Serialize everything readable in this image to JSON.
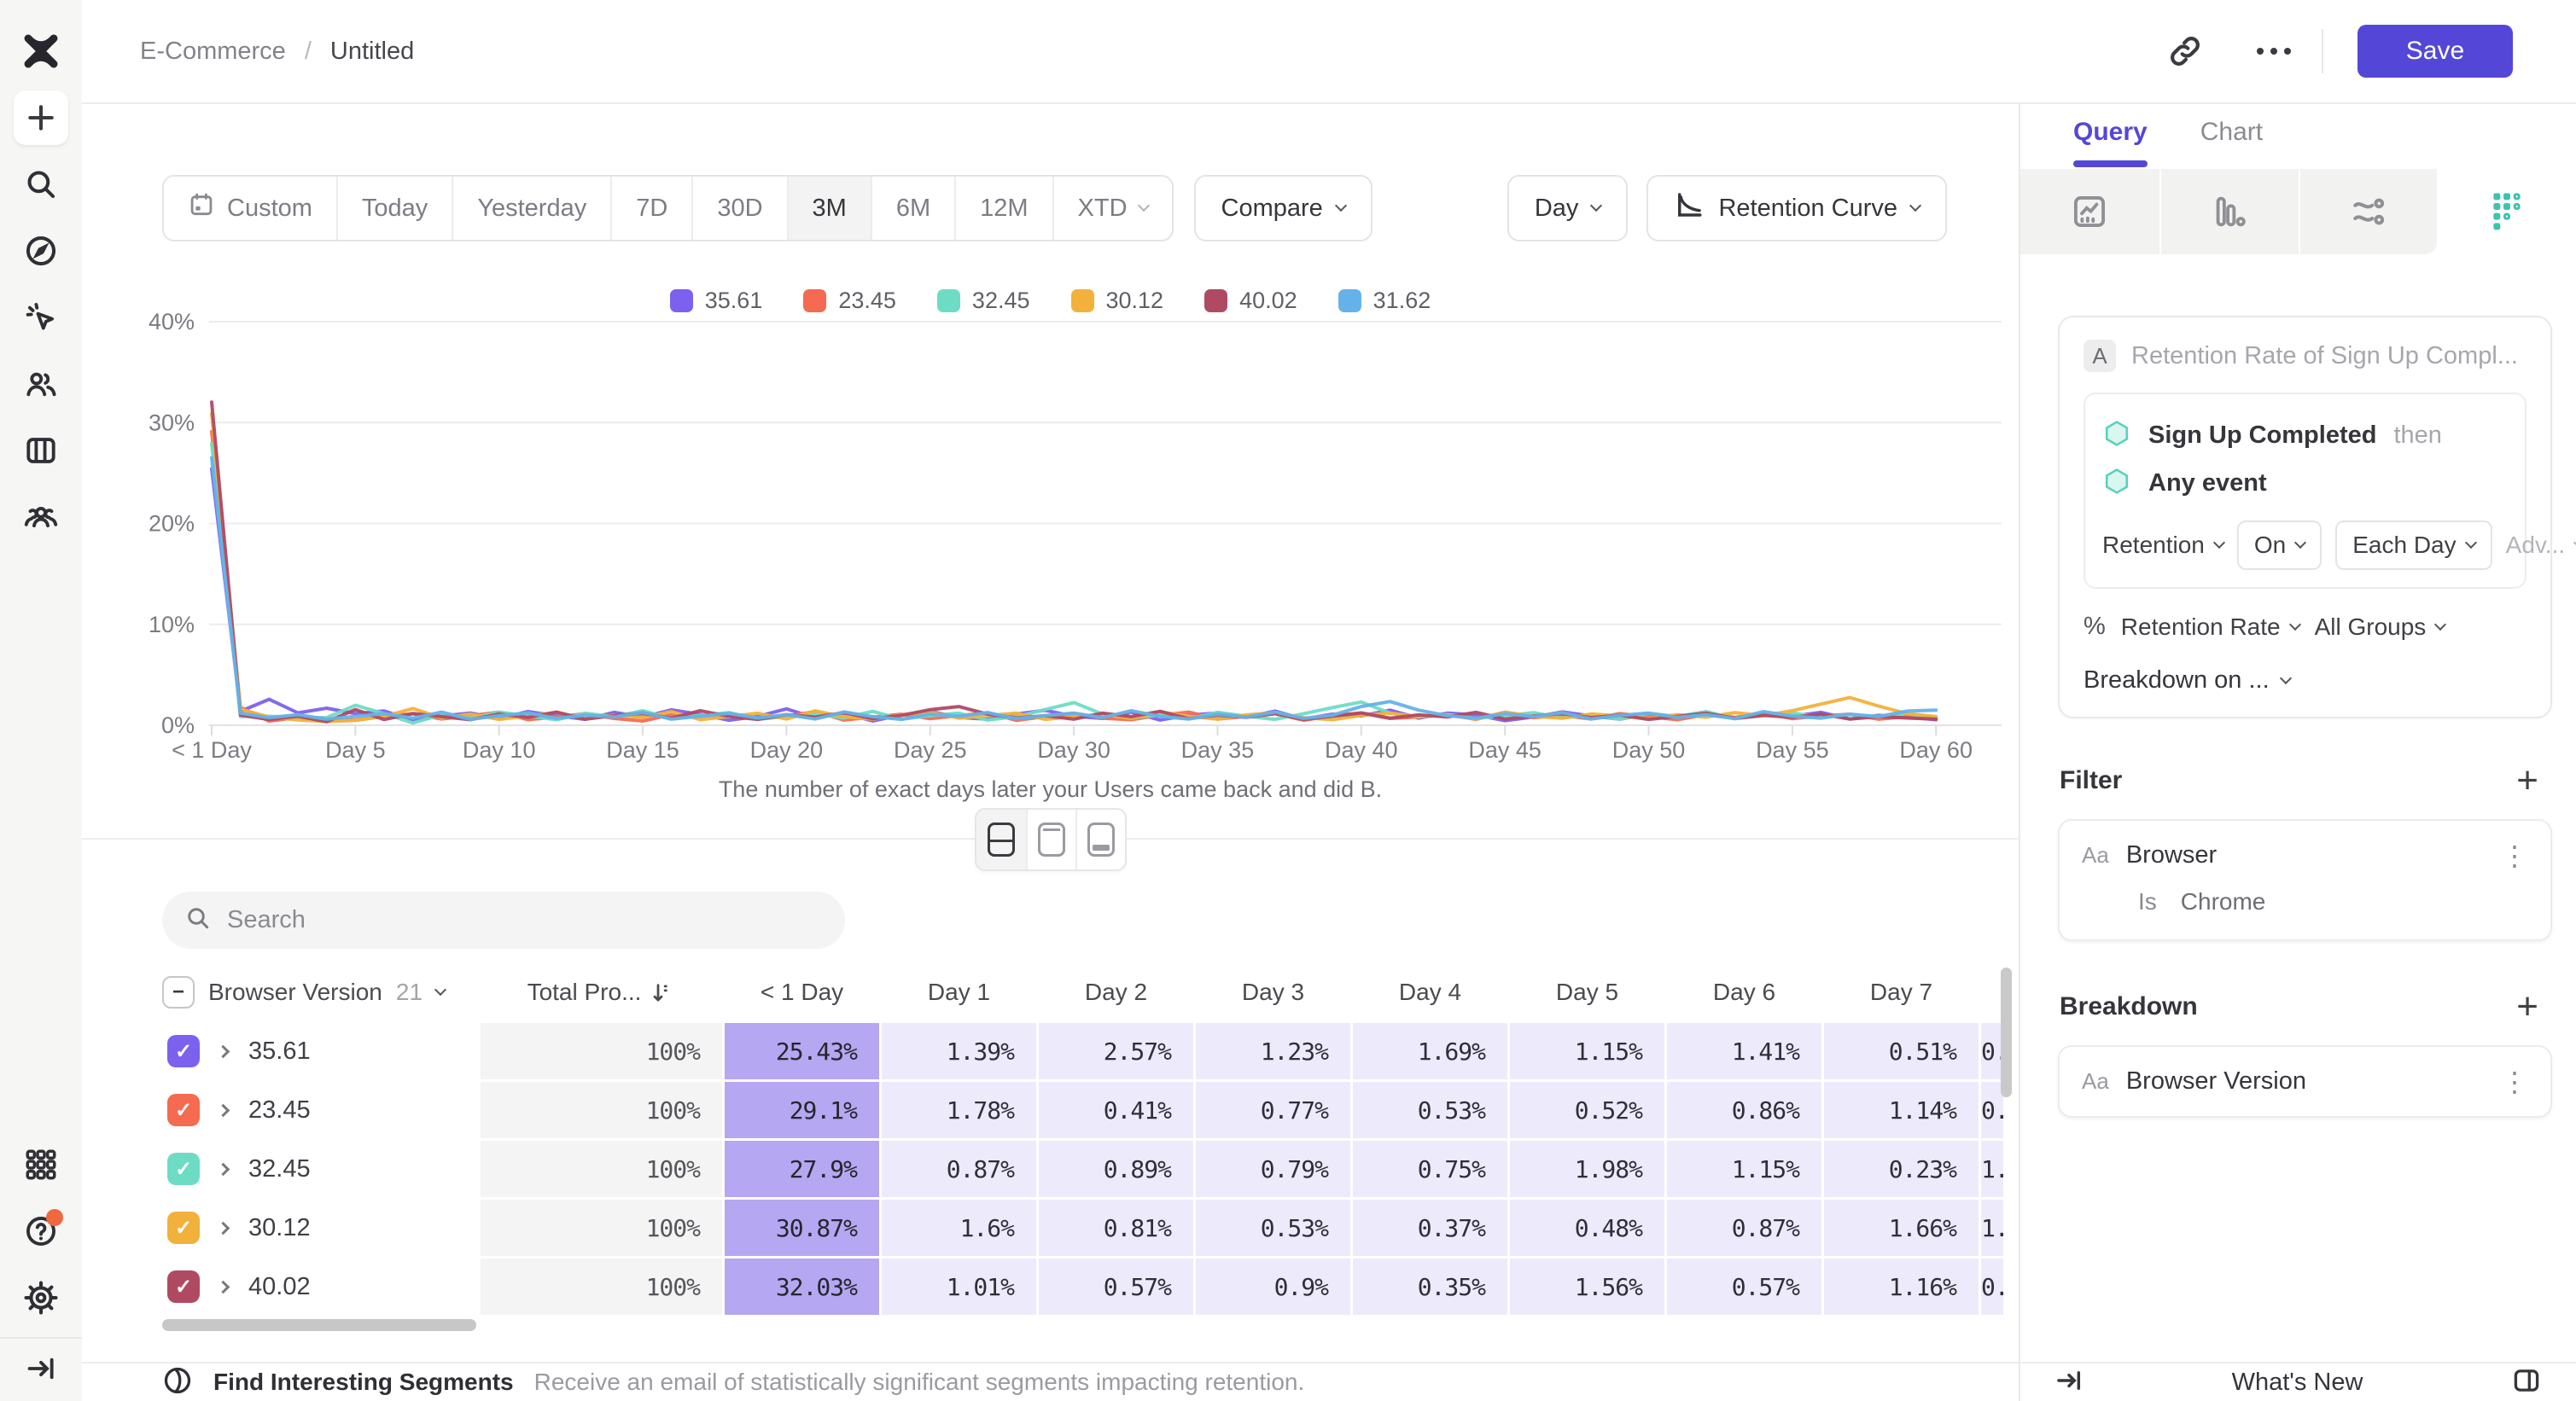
{
  "topbar": {
    "breadcrumb": {
      "project": "E-Commerce",
      "separator": "/",
      "title": "Untitled"
    },
    "save_label": "Save"
  },
  "toolbar": {
    "ranges": [
      "Custom",
      "Today",
      "Yesterday",
      "7D",
      "30D",
      "3M",
      "6M",
      "12M",
      "XTD"
    ],
    "active_range": "3M",
    "compare_label": "Compare",
    "granularity_label": "Day",
    "chart_type_label": "Retention Curve"
  },
  "chart_data": {
    "type": "line",
    "title": "",
    "xlabel": "The number of exact days later your Users came back and did B.",
    "ylabel": "",
    "x_range": [
      0,
      60
    ],
    "x_tick_positions": [
      0,
      5,
      10,
      15,
      20,
      25,
      30,
      35,
      40,
      45,
      50,
      55,
      60
    ],
    "x_tick_labels": [
      "< 1 Day",
      "Day 5",
      "Day 10",
      "Day 15",
      "Day 20",
      "Day 25",
      "Day 30",
      "Day 35",
      "Day 40",
      "Day 45",
      "Day 50",
      "Day 55",
      "Day 60"
    ],
    "y_ticks": [
      0,
      10,
      20,
      30,
      40
    ],
    "ylim": [
      0,
      42
    ],
    "grid": true,
    "legend_position": "top-center",
    "series": [
      {
        "name": "35.61",
        "color": "#7c61ee",
        "values": [
          25.43,
          1.39,
          2.57,
          1.23,
          1.69,
          1.15,
          1.41,
          0.51,
          0.92,
          1.21,
          0.68,
          1.35,
          0.95,
          0.58,
          1.28,
          0.81,
          1.52,
          1.08,
          0.49,
          0.88,
          1.62,
          0.72,
          1.18,
          0.42,
          1.02,
          1.38,
          0.78,
          0.6,
          1.12,
          1.48,
          0.9,
          0.68,
          1.3,
          0.52,
          1.0,
          1.22,
          0.82,
          1.4,
          0.62,
          1.1,
          0.92,
          1.5,
          0.7,
          1.2,
          1.02,
          0.45,
          0.82,
          1.32,
          0.92,
          0.6,
          1.1,
          0.82,
          1.22,
          0.72,
          1.02,
          0.9,
          1.28,
          0.62,
          0.98,
          0.82,
          0.55
        ]
      },
      {
        "name": "23.45",
        "color": "#f56a51",
        "values": [
          29.1,
          1.78,
          0.41,
          0.77,
          0.53,
          0.52,
          0.86,
          1.14,
          0.62,
          0.95,
          1.3,
          0.55,
          0.82,
          1.15,
          0.68,
          0.42,
          1.05,
          0.78,
          1.22,
          0.6,
          0.9,
          1.35,
          0.52,
          0.8,
          1.1,
          0.65,
          0.95,
          1.25,
          0.48,
          0.85,
          1.18,
          0.7,
          0.55,
          1.0,
          1.3,
          0.62,
          0.88,
          1.15,
          0.5,
          0.95,
          1.22,
          0.68,
          0.82,
          1.05,
          0.58,
          1.28,
          0.75,
          0.95,
          0.62,
          1.15,
          0.85,
          0.55,
          1.05,
          0.78,
          1.2,
          0.65,
          0.92,
          1.1,
          0.6,
          0.85,
          0.7
        ]
      },
      {
        "name": "32.45",
        "color": "#6edcc4",
        "values": [
          27.9,
          0.87,
          0.89,
          0.79,
          0.75,
          1.98,
          1.15,
          0.23,
          1.05,
          0.7,
          1.3,
          0.92,
          0.55,
          1.18,
          0.85,
          1.45,
          0.65,
          0.98,
          1.25,
          0.58,
          0.88,
          1.15,
          0.72,
          1.38,
          0.6,
          0.95,
          1.2,
          0.52,
          0.85,
          1.55,
          2.25,
          1.1,
          0.75,
          1.0,
          0.62,
          1.28,
          0.9,
          0.58,
          1.15,
          1.75,
          2.3,
          1.2,
          0.82,
          1.05,
          0.68,
          0.95,
          1.25,
          0.72,
          1.0,
          0.6,
          1.18,
          0.88,
          1.35,
          0.65,
          0.95,
          1.22,
          0.78,
          1.05,
          0.88,
          1.15,
          0.7
        ]
      },
      {
        "name": "30.12",
        "color": "#f2b13b",
        "values": [
          30.87,
          1.6,
          0.81,
          0.53,
          0.37,
          0.48,
          0.87,
          1.66,
          0.72,
          1.1,
          0.58,
          0.92,
          1.28,
          0.65,
          1.0,
          0.78,
          1.35,
          0.55,
          0.88,
          1.18,
          0.62,
          1.42,
          0.85,
          0.6,
          1.05,
          1.3,
          0.7,
          0.95,
          1.2,
          0.58,
          0.85,
          1.1,
          0.68,
          1.32,
          0.9,
          0.6,
          1.02,
          1.25,
          0.75,
          0.55,
          0.98,
          1.2,
          0.82,
          1.05,
          0.62,
          1.3,
          0.88,
          0.7,
          1.12,
          0.92,
          0.65,
          1.05,
          0.8,
          1.25,
          0.95,
          1.45,
          2.1,
          2.75,
          1.9,
          1.15,
          0.85
        ]
      },
      {
        "name": "40.02",
        "color": "#b04a63",
        "values": [
          32.03,
          1.01,
          0.57,
          0.9,
          0.35,
          1.56,
          0.57,
          1.16,
          0.85,
          0.55,
          1.12,
          0.78,
          1.3,
          0.6,
          0.95,
          1.18,
          0.7,
          1.45,
          0.88,
          0.58,
          1.05,
          0.8,
          1.25,
          0.65,
          0.98,
          1.55,
          1.85,
          1.1,
          0.72,
          0.95,
          0.6,
          1.2,
          0.85,
          1.38,
          0.65,
          1.0,
          0.78,
          1.15,
          0.58,
          0.9,
          1.22,
          0.7,
          1.02,
          0.82,
          1.28,
          0.62,
          0.92,
          1.15,
          0.75,
          1.0,
          0.58,
          0.88,
          1.2,
          0.68,
          0.98,
          0.78,
          1.1,
          0.62,
          0.85,
          0.72,
          0.6
        ]
      },
      {
        "name": "31.62",
        "color": "#64b2e9",
        "values": [
          26.5,
          1.2,
          0.75,
          1.05,
          0.6,
          0.88,
          1.15,
          0.7,
          1.3,
          0.58,
          0.95,
          1.22,
          0.68,
          1.0,
          0.82,
          1.28,
          0.6,
          0.9,
          1.18,
          0.72,
          1.05,
          0.62,
          1.32,
          0.85,
          0.58,
          1.1,
          0.9,
          1.25,
          0.65,
          0.95,
          1.2,
          0.75,
          1.45,
          0.88,
          0.62,
          1.08,
          0.8,
          1.3,
          0.68,
          1.0,
          1.85,
          2.35,
          1.5,
          0.95,
          0.7,
          1.15,
          0.85,
          1.25,
          0.62,
          0.98,
          1.2,
          0.78,
          1.05,
          0.65,
          1.35,
          0.9,
          0.7,
          1.1,
          0.85,
          1.4,
          1.5
        ]
      }
    ]
  },
  "search": {
    "placeholder": "Search"
  },
  "table": {
    "group_label": "Browser Version",
    "group_count": "21",
    "columns": [
      "Total Pro...",
      "< 1 Day",
      "Day 1",
      "Day 2",
      "Day 3",
      "Day 4",
      "Day 5",
      "Day 6",
      "Day 7"
    ],
    "rows": [
      {
        "name": "35.61",
        "color": "#7c61ee",
        "total": "100%",
        "cells": [
          "25.43%",
          "1.39%",
          "2.57%",
          "1.23%",
          "1.69%",
          "1.15%",
          "1.41%",
          "0.51%"
        ],
        "partial": "0."
      },
      {
        "name": "23.45",
        "color": "#f56a51",
        "total": "100%",
        "cells": [
          "29.1%",
          "1.78%",
          "0.41%",
          "0.77%",
          "0.53%",
          "0.52%",
          "0.86%",
          "1.14%"
        ],
        "partial": "0."
      },
      {
        "name": "32.45",
        "color": "#6edcc4",
        "total": "100%",
        "cells": [
          "27.9%",
          "0.87%",
          "0.89%",
          "0.79%",
          "0.75%",
          "1.98%",
          "1.15%",
          "0.23%"
        ],
        "partial": "1."
      },
      {
        "name": "30.12",
        "color": "#f2b13b",
        "total": "100%",
        "cells": [
          "30.87%",
          "1.6%",
          "0.81%",
          "0.53%",
          "0.37%",
          "0.48%",
          "0.87%",
          "1.66%"
        ],
        "partial": "1."
      },
      {
        "name": "40.02",
        "color": "#b04a63",
        "total": "100%",
        "cells": [
          "32.03%",
          "1.01%",
          "0.57%",
          "0.9%",
          "0.35%",
          "1.56%",
          "0.57%",
          "1.16%"
        ],
        "partial": "0."
      }
    ]
  },
  "bottom_bar": {
    "title": "Find Interesting Segments",
    "description": "Receive an email of statistically significant segments impacting retention."
  },
  "panel": {
    "tabs": [
      "Query",
      "Chart"
    ],
    "active_tab": "Query",
    "query": {
      "badge": "A",
      "title": "Retention Rate of Sign Up Compl...",
      "event1": "Sign Up Completed",
      "then_label": "then",
      "event2": "Any event",
      "controls": [
        "Retention",
        "On",
        "Each Day",
        "Adv..."
      ],
      "measure_prefix": "%",
      "measure_label": "Retention Rate",
      "groups_label": "All Groups",
      "breakdown_on": "Breakdown on ..."
    },
    "filter": {
      "header": "Filter",
      "type_badge": "Aa",
      "property": "Browser",
      "operator": "Is",
      "value": "Chrome"
    },
    "breakdown": {
      "header": "Breakdown",
      "type_badge": "Aa",
      "property": "Browser Version"
    },
    "whats_new": "What's New"
  },
  "icons": {
    "sidebar": [
      "mixpanel-logo",
      "plus",
      "search",
      "compass",
      "cursor-click",
      "users",
      "boards",
      "community",
      "apps-grid",
      "help",
      "settings",
      "collapse"
    ],
    "report_types": [
      "insights",
      "funnels",
      "flows",
      "retention"
    ],
    "view_toggles": [
      "split-view",
      "chart-only",
      "table-only"
    ]
  },
  "colors": {
    "accent": "#5447d8",
    "teal": "#3fc3ac",
    "cell_highlight": "#b5a7f1",
    "cell_light": "#edeafb",
    "notification": "#f0683f"
  }
}
